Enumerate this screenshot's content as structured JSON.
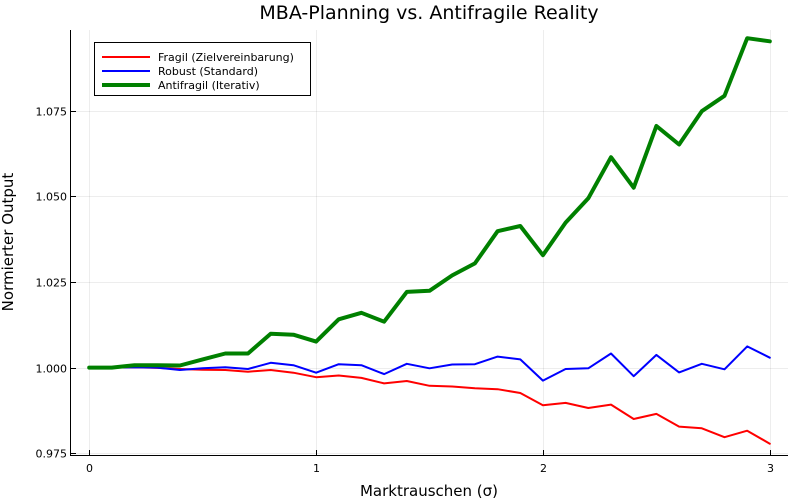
{
  "chart_data": {
    "type": "line",
    "title": "MBA-Planning vs. Antifragile Reality",
    "xlabel": "Marktrauschen (σ)",
    "ylabel": "Normierter Output",
    "xlim": [
      -0.08,
      3.08
    ],
    "ylim": [
      0.9745,
      1.0985
    ],
    "xticks": [
      0,
      1,
      2,
      3
    ],
    "xtick_labels": [
      "0",
      "1",
      "2",
      "3"
    ],
    "yticks": [
      0.975,
      1.0,
      1.025,
      1.05,
      1.075
    ],
    "ytick_labels": [
      "0.975",
      "1.000",
      "1.025",
      "1.050",
      "1.075"
    ],
    "grid": true,
    "legend_position": "top-left",
    "x": [
      0,
      0.1,
      0.2,
      0.3,
      0.4,
      0.5,
      0.6,
      0.7,
      0.8,
      0.9,
      1.0,
      1.1,
      1.2,
      1.3,
      1.4,
      1.5,
      1.6,
      1.7,
      1.8,
      1.9,
      2.0,
      2.1,
      2.2,
      2.3,
      2.4,
      2.5,
      2.6,
      2.7,
      2.8,
      2.9,
      3.0
    ],
    "series": [
      {
        "name": "Fragil (Zielvereinbarung)",
        "color": "#ff0000",
        "width": 2,
        "values": [
          1.0,
          1.0,
          1.0001,
          0.9999,
          0.9996,
          0.9994,
          0.9993,
          0.9988,
          0.9993,
          0.9985,
          0.9972,
          0.9977,
          0.997,
          0.9954,
          0.9961,
          0.9947,
          0.9945,
          0.994,
          0.9937,
          0.9926,
          0.989,
          0.9897,
          0.9882,
          0.9892,
          0.985,
          0.9865,
          0.9828,
          0.9823,
          0.9797,
          0.9816,
          0.9778
        ]
      },
      {
        "name": "Robust (Standard)",
        "color": "#0000ff",
        "width": 2,
        "values": [
          1.0,
          1.0,
          1.0001,
          1.0,
          0.9993,
          0.9998,
          1.0001,
          0.9996,
          1.0014,
          1.0007,
          0.9985,
          1.001,
          1.0007,
          0.9981,
          1.0011,
          0.9998,
          1.0009,
          1.001,
          1.0032,
          1.0024,
          0.9962,
          0.9996,
          0.9998,
          1.0041,
          0.9975,
          1.0037,
          0.9986,
          1.0011,
          0.9995,
          1.0062,
          1.0029
        ]
      },
      {
        "name": "Antifragil (Iterativ)",
        "color": "#008000",
        "width": 4,
        "values": [
          1.0,
          1.0,
          1.0007,
          1.0007,
          1.0006,
          1.0024,
          1.0041,
          1.0041,
          1.0099,
          1.0096,
          1.0076,
          1.0141,
          1.016,
          1.0134,
          1.0221,
          1.0224,
          1.0269,
          1.0304,
          1.0398,
          1.0413,
          1.0328,
          1.0423,
          1.0494,
          1.0614,
          1.0525,
          1.0705,
          1.0651,
          1.0748,
          1.0793,
          1.0961,
          1.0952
        ]
      }
    ]
  }
}
